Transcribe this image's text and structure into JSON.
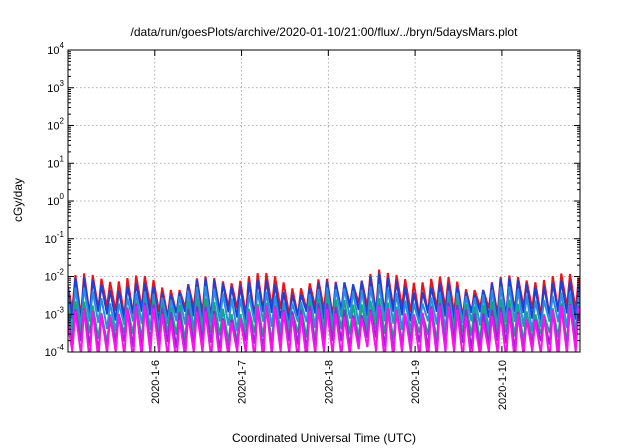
{
  "chart_data": {
    "type": "line",
    "title": "/data/run/goesPlots/archive/2020-01-10/21:00/flux/../bryn/5daysMars.plot",
    "xlabel": "Coordinated Universal Time (UTC)",
    "ylabel": "cGy/day",
    "yscale": "log",
    "ylim": [
      0.0001,
      10000
    ],
    "y_tick_values": [
      0.0001,
      0.001,
      0.01,
      0.1,
      1,
      10,
      100,
      1000,
      10000
    ],
    "y_tick_labels": [
      {
        "base": "10",
        "exp": "-4"
      },
      {
        "base": "10",
        "exp": "-3"
      },
      {
        "base": "10",
        "exp": "-2"
      },
      {
        "base": "10",
        "exp": "-1"
      },
      {
        "base": "10",
        "exp": "0"
      },
      {
        "base": "10",
        "exp": "1"
      },
      {
        "base": "10",
        "exp": "2"
      },
      {
        "base": "10",
        "exp": "3"
      },
      {
        "base": "10",
        "exp": "4"
      }
    ],
    "xlim": [
      5.0,
      10.9
    ],
    "x_tick_values": [
      6,
      7,
      8,
      9,
      10
    ],
    "x_tick_labels": [
      "2020-1-6",
      "2020-1-7",
      "2020-1-8",
      "2020-1-9",
      "2020-1-10"
    ],
    "grid": true,
    "legend": "none",
    "series": [
      {
        "color": "#e8141b",
        "peak": 0.008,
        "min": 0.0012
      },
      {
        "color": "#1f3fd9",
        "peak": 0.006,
        "min": 0.0009
      },
      {
        "color": "#2a8de3",
        "peak": 0.0035,
        "min": 0.0005
      },
      {
        "color": "#10a882",
        "peak": 0.0018,
        "min": 0.00025
      },
      {
        "color": "#8a2bd8",
        "peak": 0.0013,
        "min": 0.00015
      },
      {
        "color": "#ff10f0",
        "peak": 0.0011,
        "min": 8e-05
      }
    ]
  }
}
